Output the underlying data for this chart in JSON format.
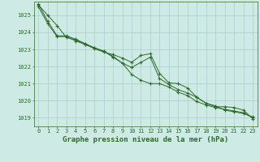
{
  "title": "Graphe pression niveau de la mer (hPa)",
  "background_color": "#ceeae4",
  "grid_color": "#aacccc",
  "line_color": "#2d6a2d",
  "ylim": [
    1018.5,
    1025.8
  ],
  "yticks": [
    1019,
    1020,
    1021,
    1022,
    1023,
    1024,
    1025
  ],
  "series": [
    [
      1025.6,
      1025.0,
      1024.4,
      1023.7,
      1023.55,
      1023.3,
      1023.05,
      1022.85,
      1022.7,
      1022.5,
      1022.25,
      1022.65,
      1022.75,
      1021.6,
      1021.05,
      1021.0,
      1020.75,
      1020.2,
      1019.85,
      1019.65,
      1019.65,
      1019.6,
      1019.45,
      1018.95
    ],
    [
      1025.5,
      1024.5,
      1023.75,
      1023.75,
      1023.5,
      1023.3,
      1023.1,
      1022.9,
      1022.55,
      1022.2,
      1021.55,
      1021.2,
      1021.0,
      1021.0,
      1020.8,
      1020.5,
      1020.3,
      1019.95,
      1019.75,
      1019.6,
      1019.5,
      1019.4,
      1019.3,
      1019.0
    ],
    [
      1025.65,
      1024.65,
      1023.8,
      1023.8,
      1023.6,
      1023.35,
      1023.1,
      1022.9,
      1022.6,
      1022.2,
      1021.95,
      1022.25,
      1022.55,
      1021.3,
      1020.95,
      1020.65,
      1020.45,
      1020.2,
      1019.85,
      1019.7,
      1019.45,
      1019.35,
      1019.25,
      1019.05
    ]
  ],
  "marker": "+",
  "marker_size": 3.0,
  "line_width": 0.7,
  "title_fontsize": 6.5,
  "tick_fontsize": 5.0,
  "xlim": [
    -0.5,
    23.5
  ]
}
